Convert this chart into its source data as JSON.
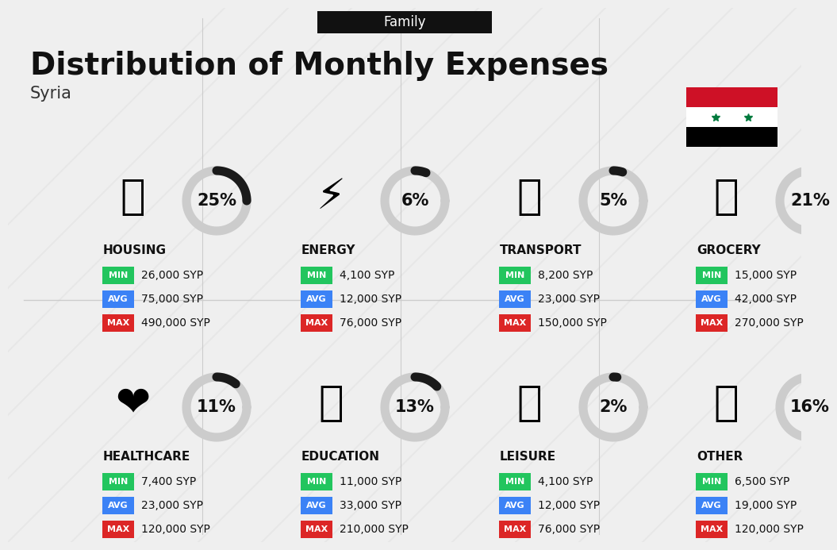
{
  "title": "Distribution of Monthly Expenses",
  "subtitle": "Syria",
  "header_label": "Family",
  "bg_color": "#efefef",
  "categories": [
    {
      "name": "HOUSING",
      "percent": 25,
      "emoji": "🏙",
      "min_val": "26,000 SYP",
      "avg_val": "75,000 SYP",
      "max_val": "490,000 SYP",
      "col": 0,
      "row": 0
    },
    {
      "name": "ENERGY",
      "percent": 6,
      "emoji": "⚡",
      "min_val": "4,100 SYP",
      "avg_val": "12,000 SYP",
      "max_val": "76,000 SYP",
      "col": 1,
      "row": 0
    },
    {
      "name": "TRANSPORT",
      "percent": 5,
      "emoji": "🚌",
      "min_val": "8,200 SYP",
      "avg_val": "23,000 SYP",
      "max_val": "150,000 SYP",
      "col": 2,
      "row": 0
    },
    {
      "name": "GROCERY",
      "percent": 21,
      "emoji": "🛍",
      "min_val": "15,000 SYP",
      "avg_val": "42,000 SYP",
      "max_val": "270,000 SYP",
      "col": 3,
      "row": 0
    },
    {
      "name": "HEALTHCARE",
      "percent": 11,
      "emoji": "❤",
      "min_val": "7,400 SYP",
      "avg_val": "23,000 SYP",
      "max_val": "120,000 SYP",
      "col": 0,
      "row": 1
    },
    {
      "name": "EDUCATION",
      "percent": 13,
      "emoji": "🎓",
      "min_val": "11,000 SYP",
      "avg_val": "33,000 SYP",
      "max_val": "210,000 SYP",
      "col": 1,
      "row": 1
    },
    {
      "name": "LEISURE",
      "percent": 2,
      "emoji": "🛍",
      "min_val": "4,100 SYP",
      "avg_val": "12,000 SYP",
      "max_val": "76,000 SYP",
      "col": 2,
      "row": 1
    },
    {
      "name": "OTHER",
      "percent": 16,
      "emoji": "💰",
      "min_val": "6,500 SYP",
      "avg_val": "19,000 SYP",
      "max_val": "120,000 SYP",
      "col": 3,
      "row": 1
    }
  ],
  "min_color": "#22c55e",
  "avg_color": "#3b82f6",
  "max_color": "#dc2626",
  "dark_arc_color": "#1a1a1a",
  "light_arc_color": "#cccccc",
  "title_fontsize": 28,
  "subtitle_fontsize": 15,
  "header_fontsize": 12,
  "cat_name_fontsize": 11,
  "pct_fontsize": 15,
  "val_fontsize": 10,
  "lbl_fontsize": 8
}
